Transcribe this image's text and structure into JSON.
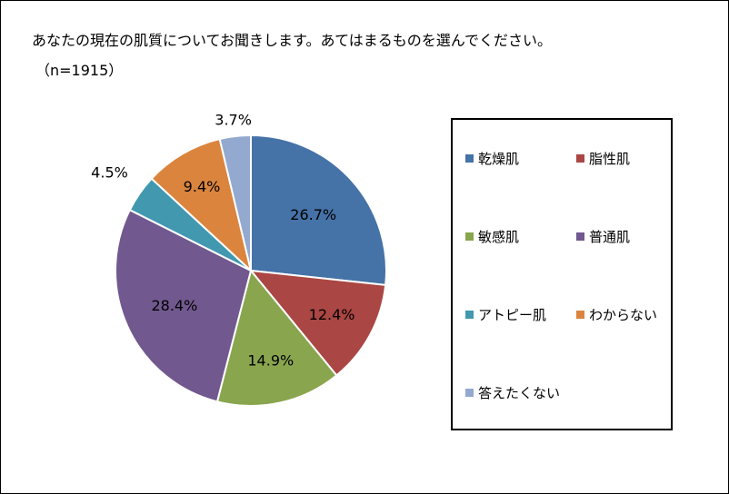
{
  "header": {
    "title": "あなたの現在の肌質についてお聞きします。あてはまるものを選んでください。",
    "subtitle": "（n=1915）"
  },
  "chart_data": {
    "type": "pie",
    "title": "あなたの現在の肌質についてお聞きします。あてはまるものを選んでください。",
    "subtitle": "（n=1915）",
    "categories": [
      "乾燥肌",
      "脂性肌",
      "敏感肌",
      "普通肌",
      "アトピー肌",
      "わからない",
      "答えたくない"
    ],
    "values": [
      26.7,
      12.4,
      14.9,
      28.4,
      4.5,
      9.4,
      3.7
    ],
    "labels": [
      "26.7%",
      "12.4%",
      "14.9%",
      "28.4%",
      "4.5%",
      "9.4%",
      "3.7%"
    ],
    "colors": [
      "#4572A7",
      "#AA4643",
      "#89A54E",
      "#71588F",
      "#4198AF",
      "#DB843D",
      "#93A9CF"
    ],
    "legend_position": "right",
    "start": "12 o'clock",
    "direction": "clockwise"
  }
}
